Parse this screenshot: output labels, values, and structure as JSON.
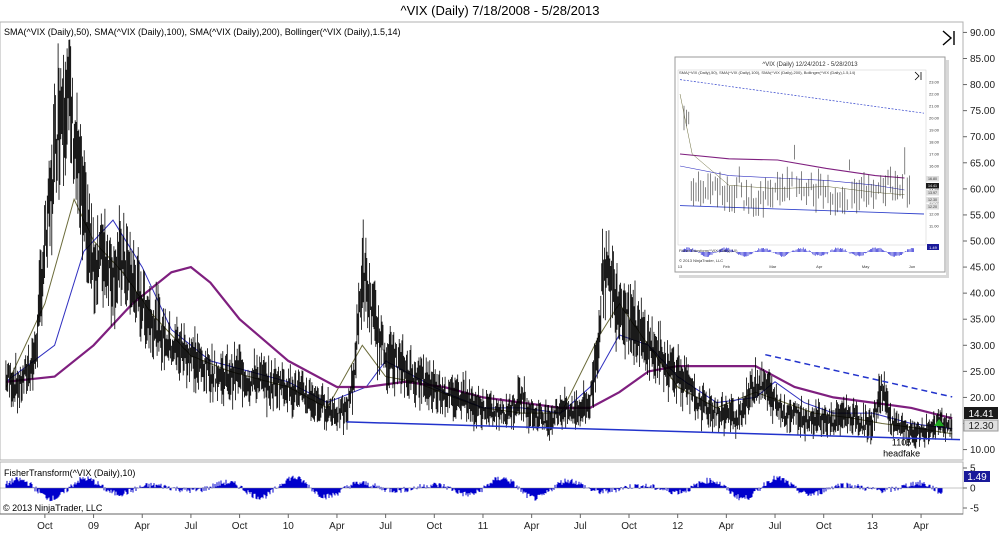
{
  "chart_data": {
    "type": "line",
    "title": "^VIX (Daily)  7/18/2008 - 5/28/2013",
    "indicators_label": "SMA(^VIX (Daily),50), SMA(^VIX (Daily),100), SMA(^VIX (Daily),200), Bollinger(^VIX (Daily),1.5,14)",
    "y_ticks": [
      "90.00",
      "85.00",
      "80.00",
      "75.00",
      "70.00",
      "65.00",
      "60.00",
      "55.00",
      "50.00",
      "45.00",
      "40.00",
      "35.00",
      "30.00",
      "25.00",
      "20.00",
      "15.00",
      "10.00"
    ],
    "ylim": [
      8,
      92
    ],
    "x_ticks": [
      "Oct",
      "09",
      "Apr",
      "Jul",
      "Oct",
      "10",
      "Apr",
      "Jul",
      "Oct",
      "11",
      "Apr",
      "Jul",
      "Oct",
      "12",
      "Apr",
      "Jul",
      "Oct",
      "13",
      "Apr"
    ],
    "x_tick_years": [
      2008.75,
      2009.0,
      2009.25,
      2009.5,
      2009.75,
      2010.0,
      2010.25,
      2010.5,
      2010.75,
      2011.0,
      2011.25,
      2011.5,
      2011.75,
      2012.0,
      2012.25,
      2012.5,
      2012.75,
      2013.0,
      2013.25
    ],
    "xlim": [
      2008.54,
      2013.45
    ],
    "last_price_label": "14.41",
    "second_price_label": "12.30",
    "series": [
      {
        "name": "^VIX (Daily)",
        "color": "#000000",
        "x": [
          2008.55,
          2008.62,
          2008.7,
          2008.74,
          2008.78,
          2008.82,
          2008.86,
          2008.9,
          2008.95,
          2009.0,
          2009.05,
          2009.1,
          2009.15,
          2009.2,
          2009.25,
          2009.3,
          2009.35,
          2009.4,
          2009.45,
          2009.5,
          2009.55,
          2009.6,
          2009.65,
          2009.7,
          2009.75,
          2009.8,
          2009.85,
          2009.9,
          2009.95,
          2010.0,
          2010.05,
          2010.1,
          2010.15,
          2010.2,
          2010.25,
          2010.3,
          2010.34,
          2010.38,
          2010.42,
          2010.46,
          2010.5,
          2010.55,
          2010.6,
          2010.65,
          2010.7,
          2010.75,
          2010.8,
          2010.85,
          2010.9,
          2010.95,
          2011.0,
          2011.05,
          2011.1,
          2011.15,
          2011.2,
          2011.25,
          2011.3,
          2011.35,
          2011.4,
          2011.45,
          2011.5,
          2011.55,
          2011.59,
          2011.62,
          2011.66,
          2011.7,
          2011.75,
          2011.8,
          2011.85,
          2011.9,
          2011.95,
          2012.0,
          2012.05,
          2012.1,
          2012.15,
          2012.2,
          2012.25,
          2012.3,
          2012.35,
          2012.4,
          2012.45,
          2012.5,
          2012.55,
          2012.6,
          2012.65,
          2012.7,
          2012.75,
          2012.8,
          2012.85,
          2012.9,
          2012.95,
          2013.0,
          2013.05,
          2013.1,
          2013.15,
          2013.2,
          2013.25,
          2013.3,
          2013.35,
          2013.41
        ],
        "y": [
          24,
          22,
          28,
          45,
          58,
          75,
          80,
          70,
          55,
          45,
          48,
          44,
          46,
          42,
          38,
          35,
          32,
          30,
          29,
          28,
          26,
          25,
          24,
          24,
          25,
          23,
          24,
          22,
          23,
          22,
          21,
          20,
          19,
          18,
          17,
          17,
          25,
          44,
          38,
          32,
          28,
          27,
          25,
          24,
          23,
          22,
          21,
          20,
          21,
          18,
          18,
          17,
          17,
          18,
          20,
          17,
          16,
          16,
          18,
          17,
          18,
          19,
          30,
          45,
          42,
          38,
          36,
          32,
          30,
          28,
          26,
          25,
          22,
          19,
          18,
          17,
          17,
          16,
          19,
          23,
          22,
          19,
          17,
          17,
          16,
          16,
          16,
          15,
          17,
          16,
          15,
          15,
          22,
          15,
          14,
          13,
          13,
          14,
          15,
          14
        ]
      },
      {
        "name": "SMA 200",
        "color": "#7f1f7f",
        "x": [
          2008.55,
          2008.8,
          2009.0,
          2009.2,
          2009.4,
          2009.5,
          2009.6,
          2009.75,
          2010.0,
          2010.25,
          2010.4,
          2010.6,
          2010.8,
          2011.0,
          2011.2,
          2011.4,
          2011.55,
          2011.7,
          2011.85,
          2012.0,
          2012.2,
          2012.4,
          2012.6,
          2012.8,
          2013.0,
          2013.2,
          2013.41
        ],
        "y": [
          23,
          24,
          30,
          38,
          44,
          45,
          42,
          35,
          27,
          22,
          22,
          23,
          22,
          20,
          19,
          18,
          18,
          21,
          25,
          26,
          26,
          26,
          22,
          20,
          19,
          18,
          16
        ]
      },
      {
        "name": "SMA 100",
        "color": "#3030c0",
        "x": [
          2008.55,
          2008.8,
          2008.95,
          2009.1,
          2009.25,
          2009.4,
          2009.6,
          2009.8,
          2010.0,
          2010.2,
          2010.4,
          2010.5,
          2010.6,
          2010.8,
          2011.0,
          2011.2,
          2011.4,
          2011.55,
          2011.7,
          2011.85,
          2012.0,
          2012.2,
          2012.4,
          2012.5,
          2012.65,
          2012.8,
          2013.0,
          2013.2,
          2013.41
        ],
        "y": [
          23,
          30,
          48,
          54,
          45,
          33,
          27,
          25,
          23,
          19,
          22,
          27,
          25,
          21,
          18,
          18,
          17,
          22,
          32,
          30,
          24,
          19,
          20,
          23,
          19,
          17,
          17,
          15,
          14
        ]
      },
      {
        "name": "SMA 50",
        "color": "#6b6b3a",
        "x": [
          2008.55,
          2008.75,
          2008.9,
          2009.0,
          2009.15,
          2009.3,
          2009.5,
          2009.7,
          2010.0,
          2010.2,
          2010.38,
          2010.5,
          2010.65,
          2010.85,
          2011.0,
          2011.2,
          2011.4,
          2011.6,
          2011.7,
          2011.85,
          2012.0,
          2012.2,
          2012.4,
          2012.55,
          2012.7,
          2012.9,
          2013.05,
          2013.25,
          2013.41
        ],
        "y": [
          22,
          38,
          58,
          50,
          44,
          36,
          28,
          25,
          22,
          18,
          30,
          24,
          23,
          20,
          18,
          17,
          17,
          32,
          38,
          30,
          22,
          18,
          21,
          19,
          17,
          16,
          15,
          14,
          13
        ]
      }
    ],
    "trendlines": [
      {
        "name": "support",
        "style": "solid",
        "color": "#2233cc",
        "x": [
          2010.3,
          2013.45
        ],
        "y": [
          15.3,
          11.9
        ]
      },
      {
        "name": "resistance",
        "style": "dashed",
        "color": "#2233cc",
        "x": [
          2012.45,
          2013.41
        ],
        "y": [
          28.2,
          20.1
        ]
      }
    ],
    "annotations": [
      {
        "text": "1105",
        "x": 2013.15,
        "y": 10.8
      },
      {
        "text": "headfake",
        "x": 2013.15,
        "y": 8.7
      }
    ],
    "oscillator": {
      "label": "FisherTransform(^VIX (Daily),10)",
      "value_label": "1.49",
      "y_ticks": [
        "5",
        "0",
        "-5"
      ],
      "ylim": [
        -6.5,
        6.5
      ],
      "color": "#0000cc"
    },
    "inset": {
      "title": "^VIX (Daily)  12/24/2012 - 5/28/2013",
      "indicators_label": "SMA(^VIX (Daily),50), SMA(^VIX (Daily),100), SMA(^VIX (Daily),200), Bollinger(^VIX (Daily),1.5,14)",
      "x_ticks": [
        "13",
        "Feb",
        "Mar",
        "Apr",
        "May",
        "Jun"
      ],
      "y_ticks": [
        "23.00",
        "22.00",
        "21.00",
        "20.00",
        "19.00",
        "18.00",
        "17.00",
        "16.00",
        "15.00",
        "14.00",
        "13.00",
        "12.00",
        "11.00"
      ],
      "price_labels": [
        "16.80",
        "14.41",
        "13.97",
        "12.30",
        "12.20"
      ],
      "oscillator_label": "FisherTransform(^VIX (Daily),10)",
      "oscillator_value": "1.49",
      "copyright": "© 2013 NinjaTrader, LLC"
    },
    "copyright": "© 2013 NinjaTrader, LLC",
    "grid": false
  }
}
